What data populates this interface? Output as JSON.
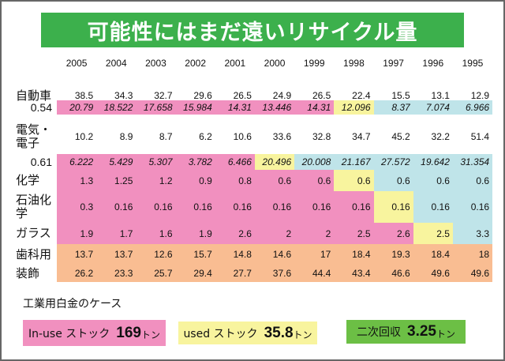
{
  "title": "可能性にはまだ遠いリサイクル量",
  "table": {
    "years": [
      "2005",
      "2004",
      "2003",
      "2002",
      "2001",
      "2000",
      "1999",
      "1998",
      "1997",
      "1996",
      "1995"
    ],
    "rows": [
      {
        "label": "自動車",
        "values": [
          "38.5",
          "34.3",
          "32.7",
          "29.6",
          "26.5",
          "24.9",
          "26.5",
          "22.4",
          "15.5",
          "13.1",
          "12.9"
        ],
        "colors": "nnnnnnnnnnn"
      },
      {
        "label": "0.54",
        "ratio": true,
        "values": [
          "20.79",
          "18.522",
          "17.658",
          "15.984",
          "14.31",
          "13.446",
          "14.31",
          "12.096",
          "8.37",
          "7.074",
          "6.966"
        ],
        "colors": "pppppppybbb"
      },
      {
        "label": "電気・\n電子",
        "values": [
          "10.2",
          "8.9",
          "8.7",
          "6.2",
          "10.6",
          "33.6",
          "32.8",
          "34.7",
          "45.2",
          "32.2",
          "51.4"
        ],
        "colors": "nnnnnnnnnnn"
      },
      {
        "label": "0.61",
        "ratio": true,
        "values": [
          "6.222",
          "5.429",
          "5.307",
          "3.782",
          "6.466",
          "20.496",
          "20.008",
          "21.167",
          "27.572",
          "19.642",
          "31.354"
        ],
        "colors": "pppppybbbbb"
      },
      {
        "label": "化学",
        "values": [
          "1.3",
          "1.25",
          "1.2",
          "0.9",
          "0.8",
          "0.6",
          "0.6",
          "0.6",
          "0.6",
          "0.6",
          "0.6"
        ],
        "colors": "pppppppybbb"
      },
      {
        "label": "石油化\n学",
        "values": [
          "0.3",
          "0.16",
          "0.16",
          "0.16",
          "0.16",
          "0.16",
          "0.16",
          "0.16",
          "0.16",
          "0.16",
          "0.16"
        ],
        "colors": "ppppppppybb"
      },
      {
        "label": "ガラス",
        "values": [
          "1.9",
          "1.7",
          "1.6",
          "1.9",
          "2.6",
          "2",
          "2",
          "2.5",
          "2.6",
          "2.5",
          "3.3"
        ],
        "colors": "pppppppppyb"
      },
      {
        "label": "歯科用",
        "values": [
          "13.7",
          "13.7",
          "12.6",
          "15.7",
          "14.8",
          "14.6",
          "17",
          "18.4",
          "19.3",
          "18.4",
          "18"
        ],
        "colors": "ooooooooooo"
      },
      {
        "label": "装飾",
        "values": [
          "26.2",
          "23.3",
          "25.7",
          "29.4",
          "27.7",
          "37.6",
          "44.4",
          "43.4",
          "46.6",
          "49.6",
          "49.6"
        ],
        "colors": "ooooooooooo"
      }
    ]
  },
  "case_label": "工業用白金のケース",
  "summary": [
    {
      "label": "In-use ストック",
      "value": "169",
      "unit": "トン",
      "color": "#f190bf"
    },
    {
      "label": "used ストック",
      "value": "35.8",
      "unit": "トン",
      "color": "#f8f49e"
    },
    {
      "label": "二次回収",
      "value": "3.25",
      "unit": "トン",
      "color": "#6cbf45"
    }
  ]
}
